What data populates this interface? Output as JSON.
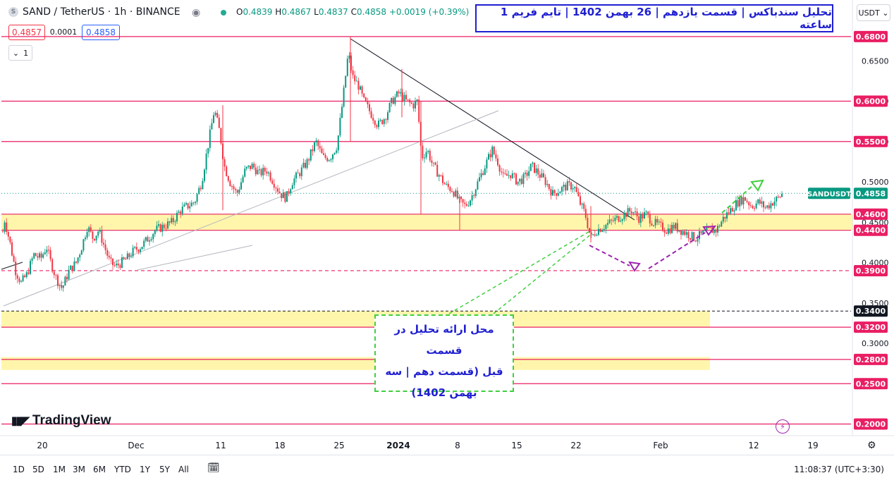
{
  "header": {
    "symbol": "SAND / TetherUS · 1h · BINANCE",
    "o_label": "O",
    "o": "0.4839",
    "h_label": "H",
    "h": "0.4867",
    "l_label": "L",
    "l": "0.4837",
    "c_label": "C",
    "c": "0.4858",
    "change": "+0.0019 (+0.39%)",
    "sell_price": "0.4857",
    "spread": "0.0001",
    "buy_price": "0.4858",
    "indicators_count": "1",
    "currency": "USDT"
  },
  "annotations": {
    "title": "تحلیل سندباکس | قسمت یازدهم | 26 بهمن 1402 | تایم فریم 1 ساعته",
    "note_line1": "محل ارائه تحلیل در قسمت",
    "note_line2": "قبل (قسمت دهم | سه",
    "note_line3": "بهمن 1402)"
  },
  "branding": {
    "logo_text": "TradingView"
  },
  "bottom_bar": {
    "ranges": [
      "1D",
      "5D",
      "1M",
      "3M",
      "6M",
      "YTD",
      "1Y",
      "5Y",
      "All"
    ],
    "clock": "11:08:37 (UTC+3:30)"
  },
  "colors": {
    "up": "#089981",
    "down": "#f23645",
    "level_line": "#e91e63",
    "zone_fill": "#fff59d",
    "annotation_blue": "#1f1fd1",
    "arrow_green": "#3fcf3f",
    "arrow_purple": "#9c27b0"
  },
  "chart_data": {
    "type": "candlestick",
    "symbol_label": "SANDUSDT",
    "last_price": 0.4858,
    "x_tick_labels": [
      "20",
      "Dec",
      "11",
      "18",
      "25",
      "2024",
      "8",
      "15",
      "22",
      "Feb",
      "12",
      "19"
    ],
    "y_tick_labels": [
      0.3,
      0.35,
      0.4,
      0.45,
      0.5,
      0.55,
      0.6,
      0.65,
      0.68
    ],
    "ylim": [
      0.2,
      0.69
    ],
    "grid": false,
    "horizontal_levels": [
      {
        "value": 0.68,
        "label": "0.6800",
        "style": "solid"
      },
      {
        "value": 0.6,
        "label": "0.6000",
        "style": "solid"
      },
      {
        "value": 0.55,
        "label": "0.5500",
        "style": "solid"
      },
      {
        "value": 0.46,
        "label": "0.4600",
        "style": "solid"
      },
      {
        "value": 0.44,
        "label": "0.4400",
        "style": "solid"
      },
      {
        "value": 0.39,
        "label": "0.3900",
        "style": "dashed"
      },
      {
        "value": 0.34,
        "label": "0.3400",
        "style": "dashed-black"
      },
      {
        "value": 0.32,
        "label": "0.3200",
        "style": "solid"
      },
      {
        "value": 0.28,
        "label": "0.2800",
        "style": "solid"
      },
      {
        "value": 0.25,
        "label": "0.2500",
        "style": "solid"
      },
      {
        "value": 0.2,
        "label": "0.2000",
        "style": "solid"
      }
    ],
    "zones": [
      {
        "from": 0.44,
        "to": 0.46
      },
      {
        "from": 0.32,
        "to": 0.34
      },
      {
        "from": 0.267,
        "to": 0.283
      }
    ],
    "price_path": [
      [
        0,
        0.405
      ],
      [
        6,
        0.455
      ],
      [
        14,
        0.425
      ],
      [
        22,
        0.39
      ],
      [
        30,
        0.375
      ],
      [
        38,
        0.385
      ],
      [
        48,
        0.41
      ],
      [
        58,
        0.405
      ],
      [
        66,
        0.42
      ],
      [
        72,
        0.4
      ],
      [
        80,
        0.38
      ],
      [
        88,
        0.368
      ],
      [
        98,
        0.39
      ],
      [
        108,
        0.4
      ],
      [
        116,
        0.42
      ],
      [
        124,
        0.445
      ],
      [
        132,
        0.43
      ],
      [
        140,
        0.44
      ],
      [
        148,
        0.42
      ],
      [
        156,
        0.4
      ],
      [
        164,
        0.395
      ],
      [
        172,
        0.4
      ],
      [
        180,
        0.405
      ],
      [
        190,
        0.415
      ],
      [
        200,
        0.42
      ],
      [
        210,
        0.43
      ],
      [
        220,
        0.44
      ],
      [
        232,
        0.445
      ],
      [
        244,
        0.45
      ],
      [
        256,
        0.465
      ],
      [
        266,
        0.47
      ],
      [
        276,
        0.475
      ],
      [
        286,
        0.5
      ],
      [
        296,
        0.55
      ],
      [
        304,
        0.59
      ],
      [
        312,
        0.56
      ],
      [
        318,
        0.52
      ],
      [
        326,
        0.5
      ],
      [
        336,
        0.485
      ],
      [
        348,
        0.515
      ],
      [
        358,
        0.52
      ],
      [
        368,
        0.51
      ],
      [
        378,
        0.515
      ],
      [
        388,
        0.5
      ],
      [
        398,
        0.485
      ],
      [
        406,
        0.48
      ],
      [
        414,
        0.5
      ],
      [
        424,
        0.51
      ],
      [
        436,
        0.525
      ],
      [
        448,
        0.55
      ],
      [
        458,
        0.53
      ],
      [
        468,
        0.53
      ],
      [
        478,
        0.545
      ],
      [
        486,
        0.6
      ],
      [
        494,
        0.66
      ],
      [
        500,
        0.63
      ],
      [
        508,
        0.62
      ],
      [
        516,
        0.6
      ],
      [
        526,
        0.585
      ],
      [
        536,
        0.57
      ],
      [
        546,
        0.58
      ],
      [
        556,
        0.6
      ],
      [
        566,
        0.61
      ],
      [
        576,
        0.6
      ],
      [
        586,
        0.595
      ],
      [
        592,
        0.6
      ],
      [
        598,
        0.53
      ],
      [
        606,
        0.54
      ],
      [
        614,
        0.52
      ],
      [
        622,
        0.51
      ],
      [
        632,
        0.495
      ],
      [
        642,
        0.49
      ],
      [
        652,
        0.475
      ],
      [
        660,
        0.47
      ],
      [
        668,
        0.48
      ],
      [
        678,
        0.5
      ],
      [
        688,
        0.52
      ],
      [
        698,
        0.54
      ],
      [
        706,
        0.525
      ],
      [
        714,
        0.505
      ],
      [
        724,
        0.51
      ],
      [
        734,
        0.5
      ],
      [
        744,
        0.505
      ],
      [
        754,
        0.52
      ],
      [
        764,
        0.51
      ],
      [
        774,
        0.5
      ],
      [
        784,
        0.485
      ],
      [
        794,
        0.49
      ],
      [
        804,
        0.495
      ],
      [
        814,
        0.495
      ],
      [
        822,
        0.475
      ],
      [
        830,
        0.46
      ],
      [
        838,
        0.43
      ],
      [
        846,
        0.44
      ],
      [
        856,
        0.445
      ],
      [
        866,
        0.45
      ],
      [
        876,
        0.455
      ],
      [
        886,
        0.46
      ],
      [
        896,
        0.465
      ],
      [
        906,
        0.455
      ],
      [
        916,
        0.46
      ],
      [
        926,
        0.45
      ],
      [
        936,
        0.445
      ],
      [
        946,
        0.44
      ],
      [
        956,
        0.445
      ],
      [
        966,
        0.44
      ],
      [
        976,
        0.435
      ],
      [
        986,
        0.43
      ],
      [
        996,
        0.435
      ],
      [
        1006,
        0.44
      ],
      [
        1016,
        0.44
      ],
      [
        1026,
        0.455
      ],
      [
        1036,
        0.465
      ],
      [
        1046,
        0.475
      ],
      [
        1056,
        0.48
      ],
      [
        1066,
        0.47
      ],
      [
        1076,
        0.475
      ],
      [
        1086,
        0.468
      ],
      [
        1096,
        0.475
      ],
      [
        1104,
        0.48
      ],
      [
        1110,
        0.4858
      ]
    ]
  }
}
